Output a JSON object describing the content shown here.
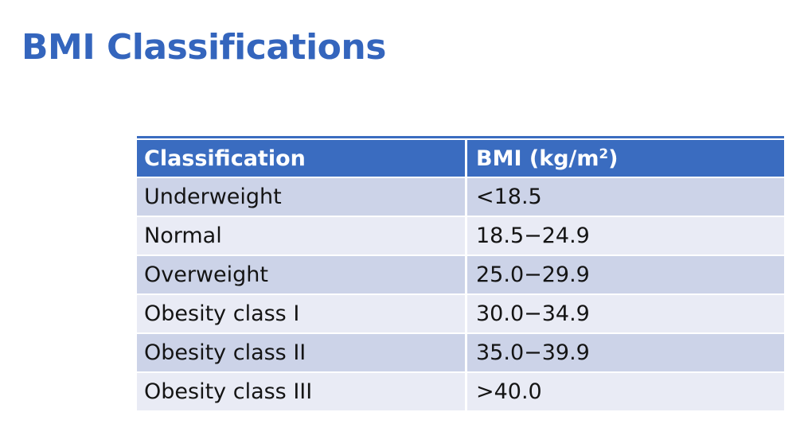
{
  "title": "BMI Classifications",
  "colors": {
    "title_text": "#3465bd",
    "header_bg": "#3a6cc0",
    "header_text": "#ffffff",
    "row_band_dark": "#ccd3e8",
    "row_band_light": "#e9ebf5",
    "body_text": "#141414",
    "top_rule": "#3a6cc0"
  },
  "table": {
    "col1_header": "Classification",
    "col2_header": {
      "prefix": "BMI (kg/m",
      "sup": "2",
      "suffix": ")"
    },
    "rows": [
      {
        "classification": "Underweight",
        "bmi": "<18.5"
      },
      {
        "classification": "Normal",
        "bmi": "18.5−24.9"
      },
      {
        "classification": "Overweight",
        "bmi": "25.0−29.9"
      },
      {
        "classification": "Obesity class I",
        "bmi": "30.0−34.9"
      },
      {
        "classification": "Obesity class II",
        "bmi": "35.0−39.9"
      },
      {
        "classification": "Obesity class III",
        "bmi": ">40.0"
      }
    ]
  }
}
